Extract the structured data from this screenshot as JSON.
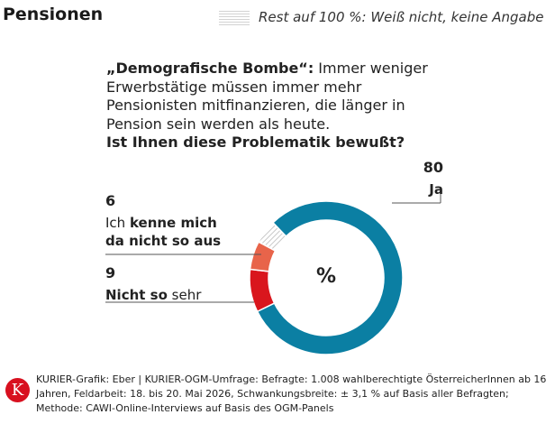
{
  "header": {
    "title": "Pensionen",
    "legend_text": "Rest auf 100 %: Weiß nicht, keine Angabe"
  },
  "question": {
    "quote": "„Demografische Bombe“:",
    "body": " Immer weniger Erwerbstätige müssen immer mehr Pensionisten mitfinanzieren, die länger in Pension sein werden als heute.",
    "ask": "Ist Ihnen diese Problematik bewußt?"
  },
  "chart_data": {
    "type": "pie",
    "donut": true,
    "center_label": "%",
    "series": [
      {
        "label": "Ja",
        "value": 80,
        "color": "#0b7fa3"
      },
      {
        "label": "Nicht so sehr",
        "value": 9,
        "color": "#d9161d"
      },
      {
        "label": "Ich kenne mich da nicht so aus",
        "value": 6,
        "color": "#e8644a"
      },
      {
        "label": "Rest auf 100 %: Weiß nicht, keine Angabe",
        "value": 5,
        "color": "#d2d2d2",
        "hatched": true
      }
    ]
  },
  "labels": {
    "ja": {
      "num": "80",
      "text": "Ja"
    },
    "kenne": {
      "num": "6",
      "pre": "Ich ",
      "bold": "kenne mich da nicht so aus",
      "post": ""
    },
    "nicht": {
      "num": "9",
      "pre": "",
      "bold": "Nicht so",
      "post": " sehr"
    }
  },
  "footer": {
    "logo_letter": "K",
    "text": "KURIER-Grafik: Eber | KURIER-OGM-Umfrage: Befragte: 1.008 wahlberechtigte ÖsterreicherInnen ab 16 Jahren, Feldarbeit: 18. bis 20. Mai 2026, Schwankungsbreite: ± 3,1 % auf Basis aller Befragten; Methode: CAWI-Online-Interviews auf Basis des OGM-Panels"
  },
  "colors": {
    "ja": "#0b7fa3",
    "nicht": "#d9161d",
    "kenne": "#e8644a",
    "rest": "#d2d2d2",
    "logo": "#d8101f"
  }
}
